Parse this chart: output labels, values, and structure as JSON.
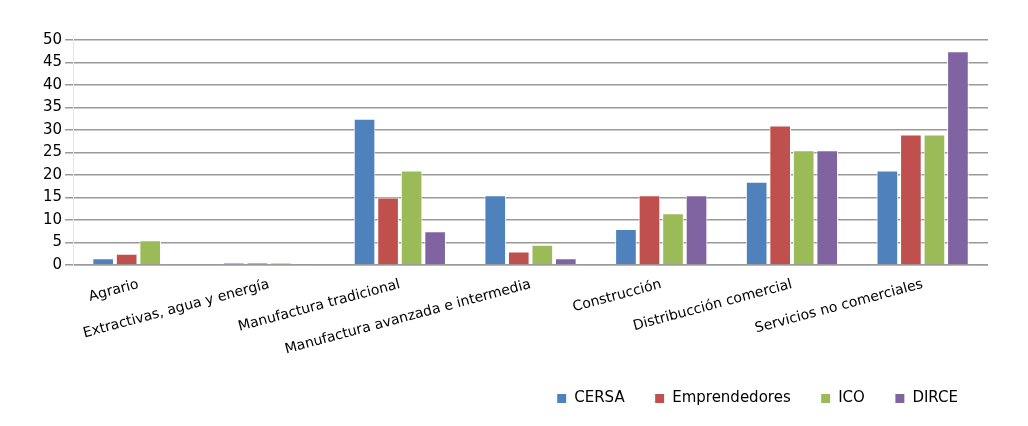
{
  "chart_data": {
    "type": "bar",
    "categories": [
      "Agrario",
      "Extractivas, agua y energía",
      "Manufactura tradicional",
      "Manufactura avanzada e intermedia",
      "Construcción",
      "Distribucción comercial",
      "Servicios no comerciales"
    ],
    "series": [
      {
        "name": "CERSA",
        "color": "#4f81bd",
        "values": [
          1.5,
          0.5,
          32.5,
          15.5,
          8,
          18.5,
          21
        ]
      },
      {
        "name": "Emprendedores",
        "color": "#c0504d",
        "values": [
          2.5,
          0.5,
          15,
          3,
          15.5,
          31,
          29
        ]
      },
      {
        "name": "ICO",
        "color": "#9bbb59",
        "values": [
          5.5,
          0.5,
          21,
          4.5,
          11.5,
          25.5,
          29
        ]
      },
      {
        "name": "DIRCE",
        "color": "#8064a2",
        "values": [
          0.2,
          0.3,
          7.5,
          1.5,
          15.5,
          25.5,
          47.5
        ]
      }
    ],
    "ylim": [
      0,
      50
    ],
    "yticks": [
      0,
      5,
      10,
      15,
      20,
      25,
      30,
      35,
      40,
      45,
      50
    ],
    "grid": "y",
    "legend": "bottom right"
  }
}
